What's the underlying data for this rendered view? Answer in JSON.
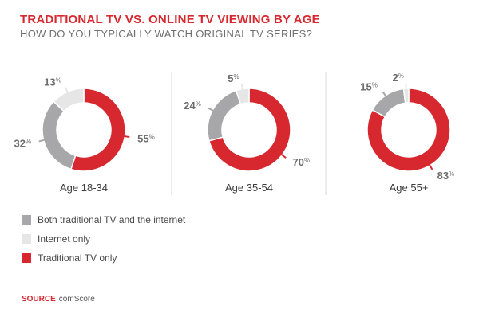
{
  "title": "TRADITIONAL TV VS. ONLINE TV VIEWING BY AGE",
  "subtitle": "HOW DO YOU TYPICALLY WATCH ORIGINAL TV SERIES?",
  "colors": {
    "both": "#a7a7a9",
    "internet": "#e6e6e7",
    "traditional": "#d7282f",
    "accent": "#d7282f",
    "divider": "#d9d9d9"
  },
  "legend": [
    {
      "key": "both",
      "label": "Both traditional TV and the internet"
    },
    {
      "key": "internet",
      "label": "Internet only"
    },
    {
      "key": "traditional",
      "label": "Traditional TV only"
    }
  ],
  "source": {
    "label": "SOURCE",
    "value": "comScore"
  },
  "chart_data": [
    {
      "type": "pie",
      "variant": "donut",
      "label": "Age 18-34",
      "series": [
        {
          "name": "Traditional TV only",
          "key": "traditional",
          "value": 55
        },
        {
          "name": "Both traditional TV and the internet",
          "key": "both",
          "value": 32
        },
        {
          "name": "Internet only",
          "key": "internet",
          "value": 13
        }
      ]
    },
    {
      "type": "pie",
      "variant": "donut",
      "label": "Age 35-54",
      "series": [
        {
          "name": "Traditional TV only",
          "key": "traditional",
          "value": 70
        },
        {
          "name": "Both traditional TV and the internet",
          "key": "both",
          "value": 24
        },
        {
          "name": "Internet only",
          "key": "internet",
          "value": 5
        }
      ]
    },
    {
      "type": "pie",
      "variant": "donut",
      "label": "Age 55+",
      "series": [
        {
          "name": "Traditional TV only",
          "key": "traditional",
          "value": 83
        },
        {
          "name": "Both traditional TV and the internet",
          "key": "both",
          "value": 15
        },
        {
          "name": "Internet only",
          "key": "internet",
          "value": 2
        }
      ]
    }
  ]
}
